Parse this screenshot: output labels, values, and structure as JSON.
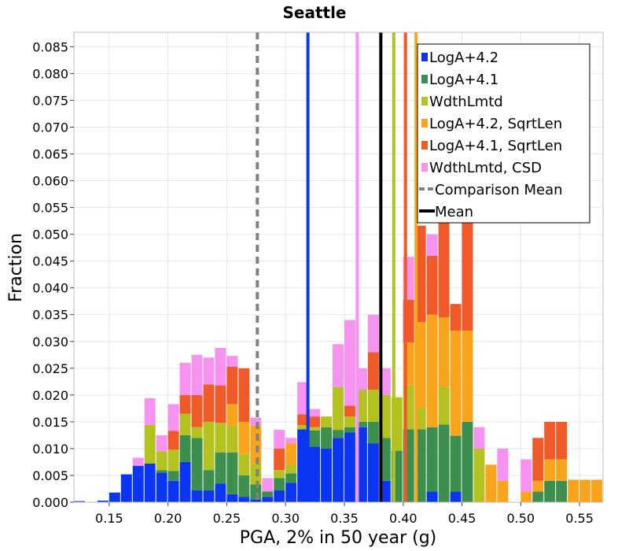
{
  "chart_data": {
    "type": "bar",
    "stacked": true,
    "title": "Seattle",
    "xlabel": "PGA, 2% in 50 year (g)",
    "ylabel": "Fraction",
    "xlim": [
      0.12,
      0.57
    ],
    "ylim": [
      0,
      0.0877
    ],
    "grid": true,
    "legend_position": "top-right",
    "bin_width": 0.01,
    "x_ticks": [
      0.15,
      0.2,
      0.25,
      0.3,
      0.35,
      0.4,
      0.45,
      0.5,
      0.55
    ],
    "x_tick_labels": [
      "0.15",
      "0.20",
      "0.25",
      "0.30",
      "0.35",
      "0.40",
      "0.45",
      "0.50",
      "0.55"
    ],
    "y_ticks": [
      0.0,
      0.005,
      0.01,
      0.015,
      0.02,
      0.025,
      0.03,
      0.035,
      0.04,
      0.045,
      0.05,
      0.055,
      0.06,
      0.065,
      0.07,
      0.075,
      0.08,
      0.085
    ],
    "y_tick_labels": [
      "0.000",
      "0.005",
      "0.010",
      "0.015",
      "0.020",
      "0.025",
      "0.030",
      "0.035",
      "0.040",
      "0.045",
      "0.050",
      "0.055",
      "0.060",
      "0.065",
      "0.070",
      "0.075",
      "0.080",
      "0.085"
    ],
    "x": [
      0.125,
      0.135,
      0.145,
      0.155,
      0.165,
      0.175,
      0.185,
      0.195,
      0.205,
      0.215,
      0.225,
      0.235,
      0.245,
      0.255,
      0.265,
      0.275,
      0.285,
      0.295,
      0.305,
      0.315,
      0.325,
      0.335,
      0.345,
      0.355,
      0.365,
      0.375,
      0.385,
      0.395,
      0.405,
      0.415,
      0.425,
      0.435,
      0.445,
      0.455,
      0.465,
      0.475,
      0.485,
      0.495,
      0.505,
      0.515,
      0.525,
      0.535,
      0.545,
      0.555,
      0.565
    ],
    "series": [
      {
        "name": "LogA+4.2",
        "color": "#0a35f2",
        "values": [
          0.0002,
          0.0,
          0.0003,
          0.0018,
          0.0052,
          0.0068,
          0.0072,
          0.0055,
          0.004,
          0.0075,
          0.0022,
          0.0022,
          0.0035,
          0.0015,
          0.001,
          0.0005,
          0.001,
          0.0022,
          0.0036,
          0.0136,
          0.0104,
          0.01,
          0.012,
          0.013,
          0.014,
          0.011,
          0.004,
          0.0,
          0.0,
          0.0,
          0.002,
          0.0,
          0.002,
          0.0,
          0.0,
          0.0,
          0.0,
          0.0,
          0.0,
          0.0,
          0.0,
          0.0,
          0.0,
          0.0,
          0.0
        ]
      },
      {
        "name": "LogA+4.1",
        "color": "#3d8f4f",
        "values": [
          0.0,
          0.0,
          0.0,
          0.0,
          0.0,
          0.0,
          0.0,
          0.0005,
          0.0018,
          0.005,
          0.0098,
          0.0038,
          0.0058,
          0.0078,
          0.004,
          0.0028,
          0.001,
          0.0023,
          0.0018,
          0.0,
          0.003,
          0.004,
          0.0015,
          0.001,
          0.001,
          0.004,
          0.008,
          0.0096,
          0.0136,
          0.0136,
          0.012,
          0.0145,
          0.0104,
          0.015,
          0.0,
          0.0,
          0.0,
          0.0,
          0.0,
          0.002,
          0.004,
          0.004,
          0.0,
          0.0,
          0.0
        ]
      },
      {
        "name": "WdthLmtd",
        "color": "#b3c21f",
        "values": [
          0.0,
          0.0,
          0.0,
          0.0,
          0.0,
          0.0,
          0.0072,
          0.0035,
          0.004,
          0.004,
          0.002,
          0.009,
          0.0055,
          0.005,
          0.004,
          0.004,
          0.0,
          0.0015,
          0.0015,
          0.0008,
          0.0006,
          0.002,
          0.008,
          0.002,
          0.006,
          0.006,
          0.008,
          0.01,
          0.0082,
          0.004,
          0.0,
          0.007,
          0.0,
          0.0,
          0.01,
          0.0,
          0.0,
          0.0,
          0.0,
          0.0,
          0.0,
          0.0,
          0.0,
          0.0,
          0.0
        ]
      },
      {
        "name": "LogA+4.2, SqrtLen",
        "color": "#f8a51d",
        "values": [
          0.0,
          0.0,
          0.0,
          0.0,
          0.0,
          0.0,
          0.0,
          0.0,
          0.0,
          0.0,
          0.0,
          0.0,
          0.0,
          0.004,
          0.006,
          0.007,
          0.0,
          0.0,
          0.0041,
          0.0,
          0.0,
          0.0,
          0.0,
          0.0,
          0.0,
          0.0,
          0.0,
          0.0,
          0.008,
          0.016,
          0.021,
          0.013,
          0.0196,
          0.017,
          0.0,
          0.007,
          0.004,
          0.0,
          0.002,
          0.002,
          0.004,
          0.004,
          0.0042,
          0.0042,
          0.0042
        ]
      },
      {
        "name": "LogA+4.1, SqrtLen",
        "color": "#f05a28",
        "values": [
          0.0,
          0.0,
          0.0,
          0.0,
          0.0,
          0.0,
          0.0,
          0.0,
          0.0035,
          0.0035,
          0.006,
          0.007,
          0.007,
          0.007,
          0.01,
          0.0,
          0.0,
          0.004,
          0.0,
          0.002,
          0.002,
          0.0,
          0.0,
          0.002,
          0.0,
          0.007,
          0.0,
          0.0,
          0.008,
          0.018,
          0.011,
          0.02,
          0.005,
          0.028,
          0.0,
          0.0,
          0.0,
          0.0,
          0.0,
          0.008,
          0.007,
          0.007,
          0.0,
          0.0,
          0.0
        ]
      },
      {
        "name": "WdthLmtd, CSD",
        "color": "#f692f0",
        "values": [
          0.0,
          0.0,
          0.0,
          0.0,
          0.0,
          0.0015,
          0.005,
          0.003,
          0.005,
          0.006,
          0.0075,
          0.005,
          0.007,
          0.002,
          0.0,
          0.0015,
          0.0025,
          0.0035,
          0.001,
          0.006,
          0.0014,
          0.0,
          0.008,
          0.016,
          0.004,
          0.007,
          0.005,
          0.0,
          0.008,
          0.0,
          0.004,
          0.0,
          0.0,
          0.0,
          0.004,
          0.0,
          0.006,
          0.0,
          0.006,
          0.0,
          0.0,
          0.0,
          0.0,
          0.0,
          0.0
        ]
      }
    ],
    "vertical_lines": [
      {
        "series": "LogA+4.2",
        "x": 0.319,
        "color": "#0a35f2",
        "style": "solid"
      },
      {
        "series": "WdthLmtd, CSD",
        "x": 0.361,
        "color": "#f692f0",
        "style": "solid"
      },
      {
        "series": "WdthLmtd",
        "x": 0.392,
        "color": "#b3c21f",
        "style": "solid"
      },
      {
        "series": "LogA+4.1, SqrtLen",
        "x": 0.402,
        "color": "#f05a28",
        "style": "solid"
      },
      {
        "series": "LogA+4.2, SqrtLen",
        "x": 0.411,
        "color": "#f8a51d",
        "style": "solid"
      },
      {
        "series": "Comparison Mean",
        "x": 0.276,
        "color": "#808080",
        "style": "dashed"
      },
      {
        "series": "Mean",
        "x": 0.381,
        "color": "#000000",
        "style": "solid"
      }
    ],
    "legend": [
      {
        "label": "LogA+4.2",
        "kind": "patch",
        "color": "#0a35f2"
      },
      {
        "label": "LogA+4.1",
        "kind": "patch",
        "color": "#3d8f4f"
      },
      {
        "label": "WdthLmtd",
        "kind": "patch",
        "color": "#b3c21f"
      },
      {
        "label": "LogA+4.2, SqrtLen",
        "kind": "patch",
        "color": "#f8a51d"
      },
      {
        "label": "LogA+4.1, SqrtLen",
        "kind": "patch",
        "color": "#f05a28"
      },
      {
        "label": "WdthLmtd, CSD",
        "kind": "patch",
        "color": "#f692f0"
      },
      {
        "label": "Comparison Mean",
        "kind": "dashed-line",
        "color": "#808080"
      },
      {
        "label": "Mean",
        "kind": "solid-line",
        "color": "#000000"
      }
    ]
  }
}
